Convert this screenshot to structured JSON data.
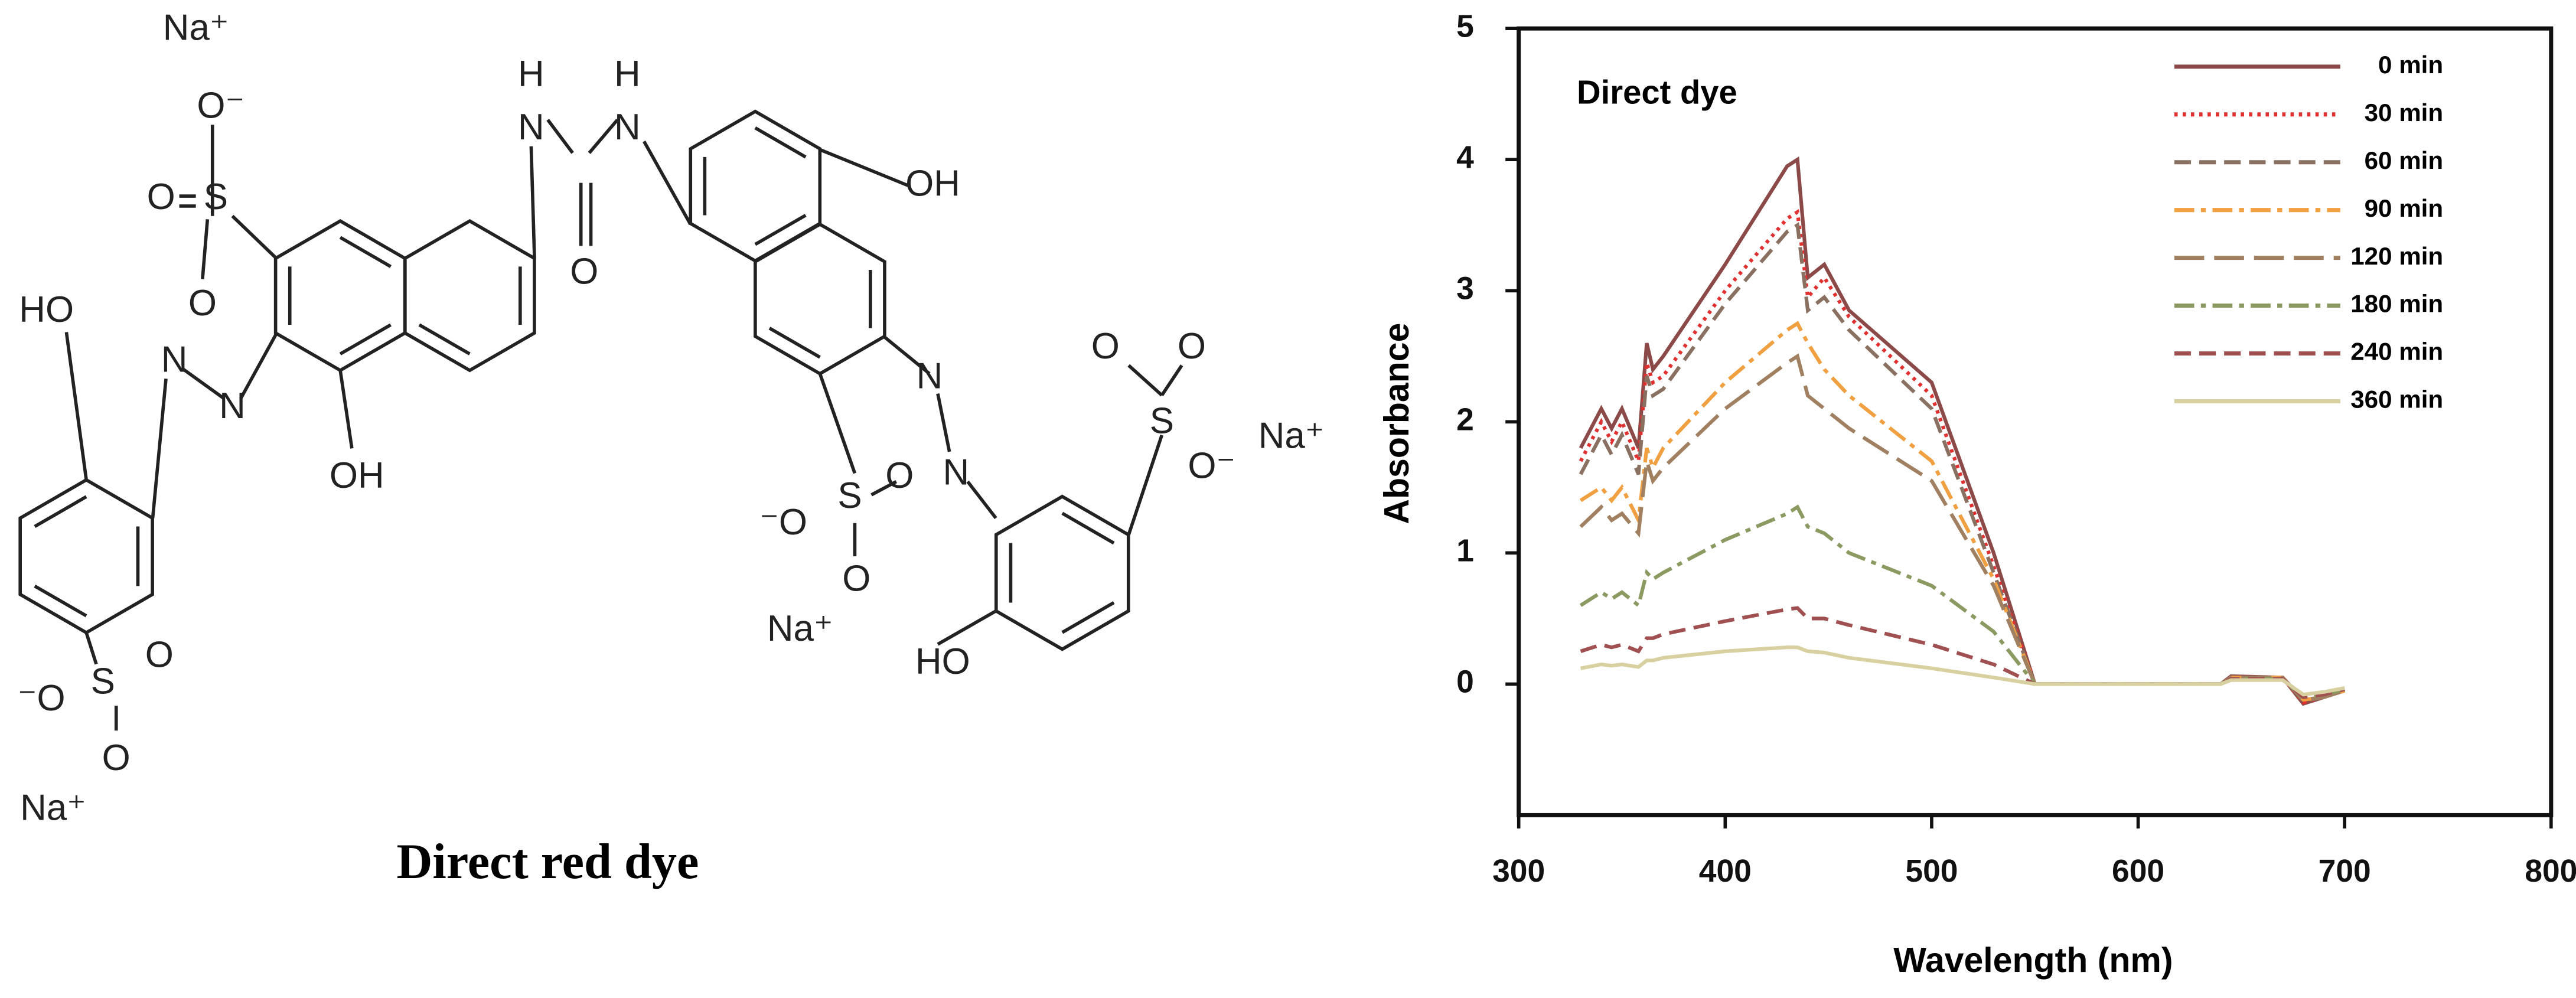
{
  "diagram": {
    "title": "Direct red dye",
    "labels": [
      "Na⁺",
      "O⁻",
      "O",
      "S",
      "O",
      "HO",
      "N",
      "N",
      "OH",
      "H",
      "N",
      "H",
      "N",
      "O",
      "OH",
      "N",
      "N",
      "O",
      "O",
      "S",
      "O⁻",
      "Na⁺",
      "⁻O",
      "S",
      "O",
      "O",
      "Na⁺",
      "HO",
      "S",
      "⁻O",
      "O",
      "O",
      "Na⁺"
    ]
  },
  "chart_data": {
    "type": "line",
    "annotation": "Direct dye",
    "xlabel": "Wavelength (nm)",
    "ylabel": "Absorbance",
    "x": [
      330,
      340,
      345,
      350,
      358,
      362,
      365,
      370,
      400,
      430,
      435,
      440,
      448,
      460,
      500,
      530,
      550,
      600,
      640,
      645,
      670,
      680,
      690,
      700
    ],
    "series": [
      {
        "name": "0 min",
        "color": "#8b4a48",
        "dash": "solid",
        "values": [
          1.8,
          2.1,
          1.95,
          2.1,
          1.8,
          2.6,
          2.4,
          2.5,
          3.2,
          3.95,
          4.0,
          3.1,
          3.2,
          2.85,
          2.3,
          1.0,
          0,
          0,
          0,
          0.06,
          0.05,
          -0.15,
          -0.1,
          -0.05
        ]
      },
      {
        "name": "30 min",
        "color": "#e03030",
        "dash": "dotted",
        "values": [
          1.7,
          2.0,
          1.85,
          2.0,
          1.7,
          2.45,
          2.3,
          2.35,
          3.0,
          3.55,
          3.6,
          2.95,
          3.1,
          2.8,
          2.2,
          0.9,
          0,
          0,
          0,
          0.05,
          0.05,
          -0.14,
          -0.1,
          -0.05
        ]
      },
      {
        "name": "60 min",
        "color": "#8a7060",
        "dash": "dashed",
        "values": [
          1.6,
          1.9,
          1.75,
          1.9,
          1.6,
          2.35,
          2.2,
          2.25,
          2.9,
          3.45,
          3.5,
          2.85,
          2.95,
          2.7,
          2.1,
          0.85,
          0,
          0,
          0,
          0.05,
          0.05,
          -0.13,
          -0.1,
          -0.05
        ]
      },
      {
        "name": "90 min",
        "color": "#f0a040",
        "dash": "dashdot",
        "values": [
          1.4,
          1.5,
          1.4,
          1.5,
          1.25,
          1.8,
          1.65,
          1.8,
          2.3,
          2.7,
          2.75,
          2.6,
          2.4,
          2.2,
          1.7,
          0.8,
          0,
          0,
          0,
          0.05,
          0.05,
          -0.12,
          -0.1,
          -0.05
        ]
      },
      {
        "name": "120 min",
        "color": "#a08060",
        "dash": "longdash",
        "values": [
          1.2,
          1.35,
          1.25,
          1.3,
          1.15,
          1.7,
          1.55,
          1.65,
          2.1,
          2.45,
          2.5,
          2.2,
          2.1,
          1.95,
          1.55,
          0.75,
          0,
          0,
          0,
          0.05,
          0.05,
          -0.12,
          -0.1,
          -0.05
        ]
      },
      {
        "name": "180 min",
        "color": "#8a9a60",
        "dash": "dashdot",
        "values": [
          0.6,
          0.7,
          0.65,
          0.7,
          0.6,
          0.85,
          0.8,
          0.85,
          1.1,
          1.3,
          1.35,
          1.2,
          1.15,
          1.0,
          0.75,
          0.4,
          0,
          0,
          0,
          0.04,
          0.04,
          -0.1,
          -0.08,
          -0.04
        ]
      },
      {
        "name": "240 min",
        "color": "#a05050",
        "dash": "dashed",
        "values": [
          0.25,
          0.3,
          0.28,
          0.3,
          0.25,
          0.35,
          0.35,
          0.38,
          0.48,
          0.57,
          0.58,
          0.5,
          0.5,
          0.45,
          0.3,
          0.15,
          0,
          0,
          0,
          0.04,
          0.04,
          -0.1,
          -0.08,
          -0.04
        ]
      },
      {
        "name": "360 min",
        "color": "#d8d0a0",
        "dash": "solid",
        "values": [
          0.12,
          0.15,
          0.14,
          0.15,
          0.13,
          0.18,
          0.18,
          0.2,
          0.25,
          0.28,
          0.28,
          0.25,
          0.24,
          0.2,
          0.12,
          0.05,
          0,
          0,
          0,
          0.03,
          0.03,
          -0.08,
          -0.06,
          -0.03
        ]
      }
    ],
    "xlim": [
      300,
      800
    ],
    "ylim": [
      -1,
      5
    ],
    "xticks": [
      300,
      400,
      500,
      600,
      700,
      800
    ],
    "yticks": [
      0,
      1,
      2,
      3,
      4,
      5
    ]
  }
}
